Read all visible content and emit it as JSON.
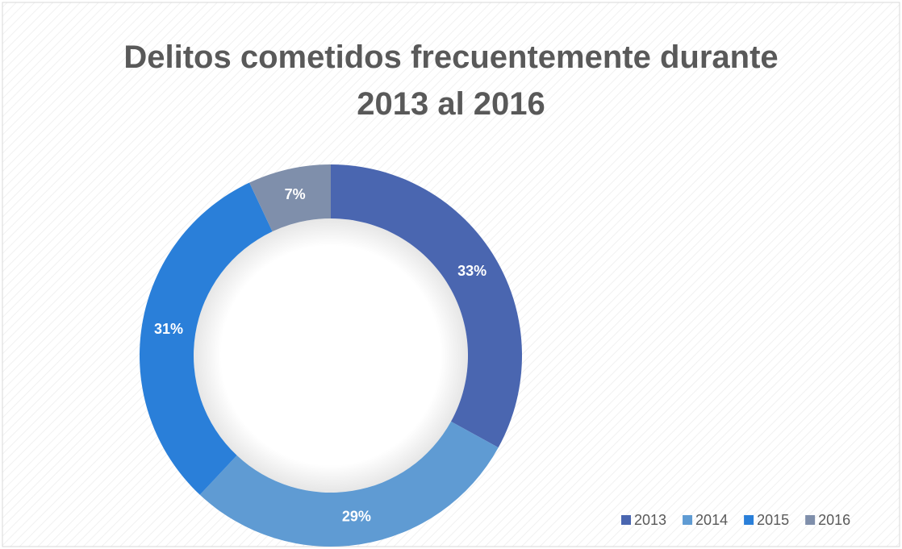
{
  "chart_data": {
    "type": "doughnut",
    "title": "Delitos cometidos frecuentemente durante 2013 al 2016",
    "categories": [
      "2013",
      "2014",
      "2015",
      "2016"
    ],
    "values": [
      33,
      29,
      31,
      7
    ],
    "value_labels": [
      "33%",
      "29%",
      "31%",
      "7%"
    ],
    "colors": [
      "#4a66b0",
      "#5f9bd3",
      "#2a7fd9",
      "#7f8fab"
    ],
    "legend": "bottom-right"
  }
}
